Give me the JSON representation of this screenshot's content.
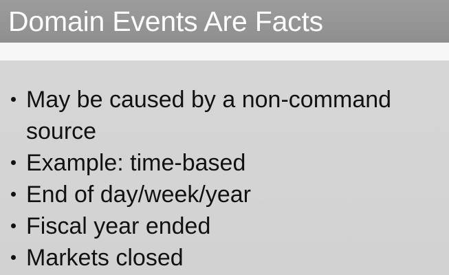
{
  "slide": {
    "title": "Domain Events Are Facts",
    "bullets": [
      "May be caused by a non-command source",
      "Example: time-based",
      "End of day/week/year",
      "Fiscal year ended",
      "Markets closed"
    ]
  }
}
